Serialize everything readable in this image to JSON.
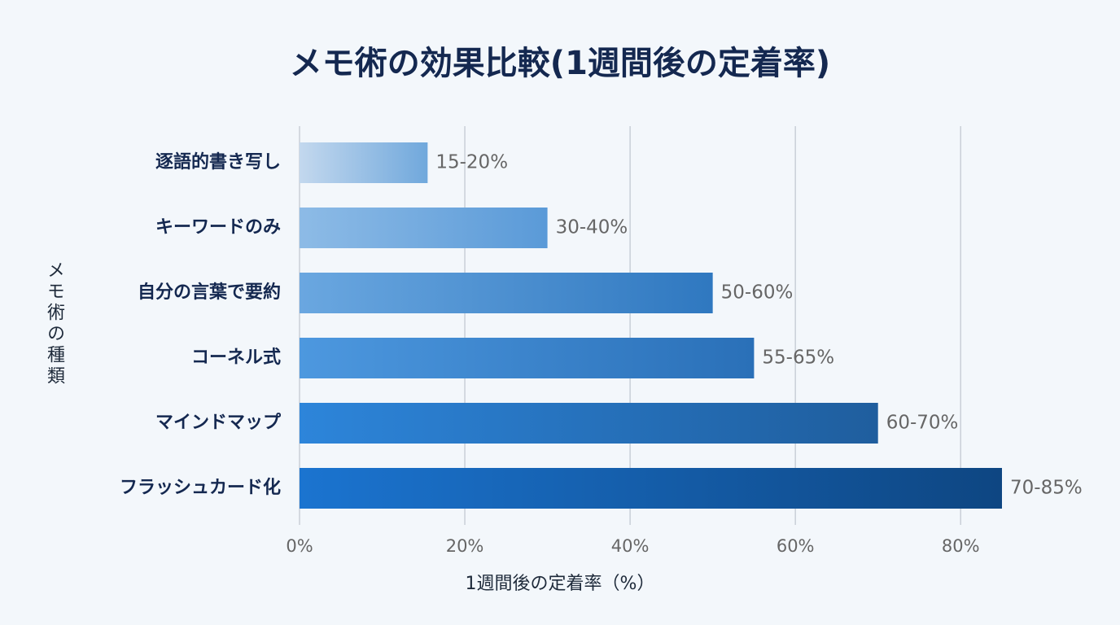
{
  "chart_data": {
    "type": "bar",
    "orientation": "horizontal",
    "title": "メモ術の効果比較(1週間後の定着率)",
    "x_label": "1週間後の定着率（%）",
    "y_label": "メモ術の種類",
    "categories": [
      "逐語的書き写し",
      "キーワードのみ",
      "自分の言葉で要約",
      "コーネル式",
      "マインドマップ",
      "フラッシュカード化"
    ],
    "values": [
      15.5,
      30,
      50,
      55,
      70,
      85
    ],
    "value_labels": [
      "15-20%",
      "30-40%",
      "50-60%",
      "55-65%",
      "60-70%",
      "70-85%"
    ],
    "color_start": [
      "#c3d8ee",
      "#8dbbe6",
      "#6aa7e0",
      "#4d98df",
      "#2d85da",
      "#1b74d0"
    ],
    "color_end": [
      "#70a8dc",
      "#5a9ad8",
      "#2f78c0",
      "#2a70b8",
      "#1f5e9e",
      "#0e4682"
    ],
    "xlim": [
      0,
      85
    ],
    "xticks": [
      {
        "value": 0,
        "label": "0%"
      },
      {
        "value": 20,
        "label": "20%"
      },
      {
        "value": 40,
        "label": "40%"
      },
      {
        "value": 60,
        "label": "60%"
      },
      {
        "value": 80,
        "label": "80%"
      }
    ],
    "grid": true
  }
}
